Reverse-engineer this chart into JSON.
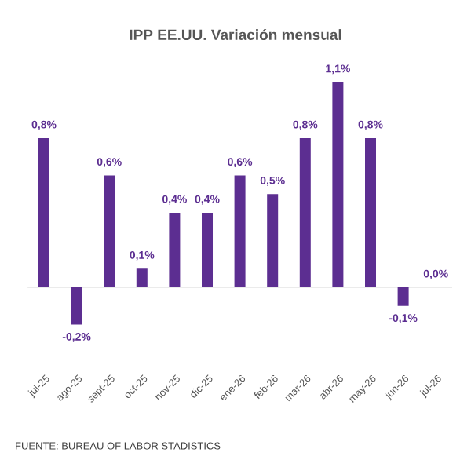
{
  "chart_data": {
    "type": "bar",
    "title": "IPP EE.UU. Variación mensual",
    "categories": [
      "jul-25",
      "ago-25",
      "sept-25",
      "oct-25",
      "nov-25",
      "dic-25",
      "ene-26",
      "feb-26",
      "mar-26",
      "abr-26",
      "may-26",
      "jun-26",
      "jul-26"
    ],
    "values": [
      0.8,
      -0.2,
      0.6,
      0.1,
      0.4,
      0.4,
      0.6,
      0.5,
      0.8,
      1.1,
      0.8,
      -0.1,
      0.0
    ],
    "value_labels": [
      "0,8%",
      "-0,2%",
      "0,6%",
      "0,1%",
      "0,4%",
      "0,4%",
      "0,6%",
      "0,5%",
      "0,8%",
      "1,1%",
      "0,8%",
      "-0,1%",
      "0,0%"
    ],
    "color": "#5c2e91",
    "annotations": [
      "FUENTE: BUREAU OF LABOR STADISTICS"
    ]
  }
}
